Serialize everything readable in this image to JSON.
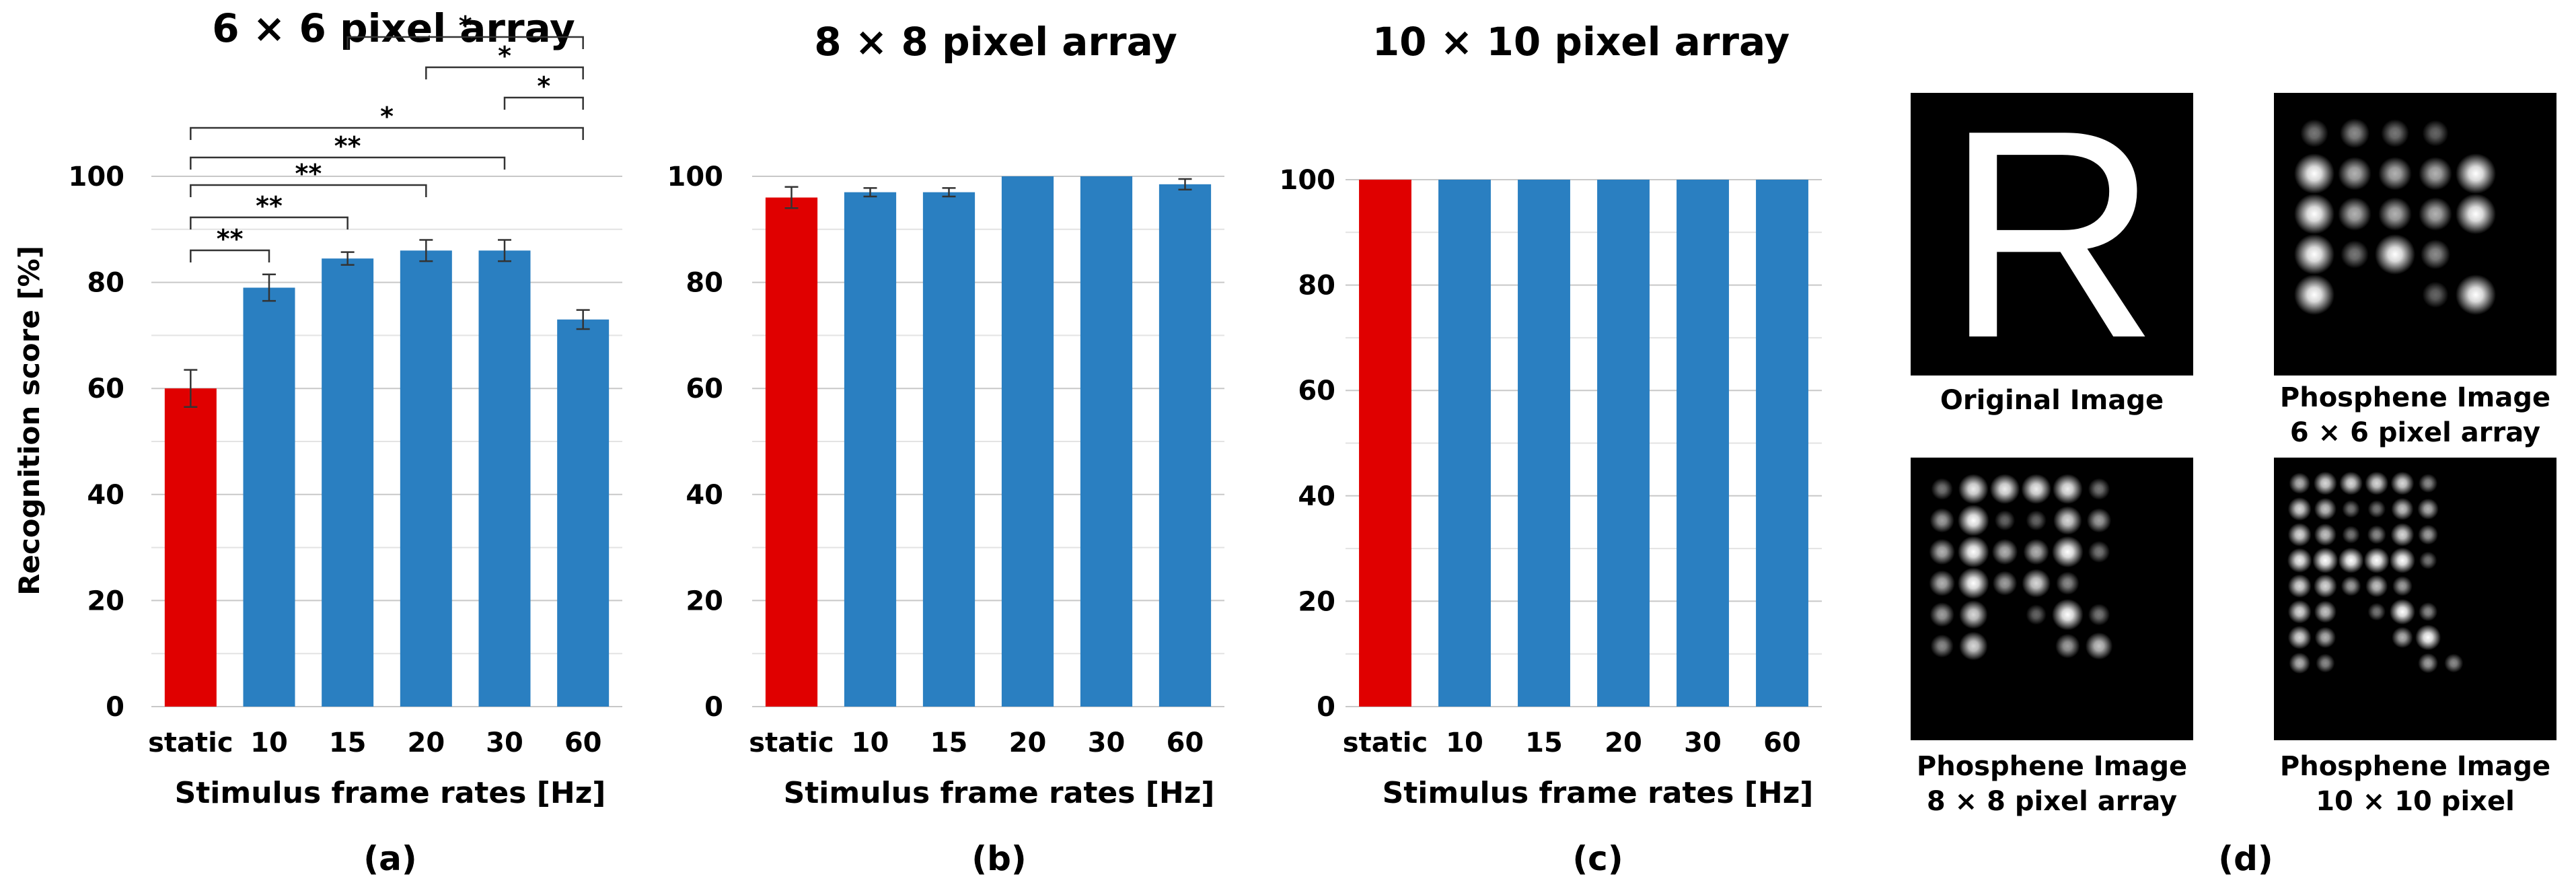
{
  "chart_data": [
    {
      "type": "bar",
      "panel_label": "(a)",
      "title": "6 × 6 pixel array",
      "xlabel": "Stimulus frame rates [Hz]",
      "ylabel": "Recognition score [%]",
      "ylim": [
        0,
        100
      ],
      "yticks": [
        "0",
        "20",
        "40",
        "60",
        "80",
        "100"
      ],
      "grid": true,
      "categories": [
        "static",
        "10",
        "15",
        "20",
        "30",
        "60"
      ],
      "values": [
        60,
        79,
        84.5,
        86,
        86,
        73
      ],
      "errors": [
        3.5,
        2.5,
        1.2,
        2,
        2,
        1.8
      ],
      "colors": [
        "#e00000",
        "#2a7fc1",
        "#2a7fc1",
        "#2a7fc1",
        "#2a7fc1",
        "#2a7fc1"
      ],
      "significance": [
        {
          "from": "static",
          "to": "10",
          "label": "**"
        },
        {
          "from": "static",
          "to": "15",
          "label": "**"
        },
        {
          "from": "static",
          "to": "20",
          "label": "**"
        },
        {
          "from": "static",
          "to": "30",
          "label": "**"
        },
        {
          "from": "static",
          "to": "60",
          "label": "*"
        },
        {
          "from": "30",
          "to": "60",
          "label": "*"
        },
        {
          "from": "20",
          "to": "60",
          "label": "*"
        },
        {
          "from": "15",
          "to": "60",
          "label": "*"
        }
      ]
    },
    {
      "type": "bar",
      "panel_label": "(b)",
      "title": "8 × 8 pixel array",
      "xlabel": "Stimulus frame rates [Hz]",
      "ylim": [
        0,
        100
      ],
      "yticks": [
        "0",
        "20",
        "40",
        "60",
        "80",
        "100"
      ],
      "grid": true,
      "categories": [
        "static",
        "10",
        "15",
        "20",
        "30",
        "60"
      ],
      "values": [
        96,
        97,
        97,
        100,
        100,
        98.5
      ],
      "errors": [
        2,
        0.8,
        0.8,
        0,
        0,
        1
      ],
      "colors": [
        "#e00000",
        "#2a7fc1",
        "#2a7fc1",
        "#2a7fc1",
        "#2a7fc1",
        "#2a7fc1"
      ]
    },
    {
      "type": "bar",
      "panel_label": "(c)",
      "title": "10 × 10 pixel array",
      "xlabel": "Stimulus frame rates [Hz]",
      "ylim": [
        0,
        100
      ],
      "yticks": [
        "0",
        "20",
        "40",
        "60",
        "80",
        "100"
      ],
      "grid": true,
      "categories": [
        "static",
        "10",
        "15",
        "20",
        "30",
        "60"
      ],
      "values": [
        100,
        100,
        100,
        100,
        100,
        100
      ],
      "errors": [
        0,
        0,
        0,
        0,
        0,
        0
      ],
      "colors": [
        "#e00000",
        "#2a7fc1",
        "#2a7fc1",
        "#2a7fc1",
        "#2a7fc1",
        "#2a7fc1"
      ]
    }
  ],
  "panel_d": {
    "label": "(d)",
    "images": [
      {
        "caption": [
          "Original Image"
        ],
        "glyph": "R",
        "kind": "original"
      },
      {
        "caption": [
          "Phosphene Image",
          "6 × 6 pixel array"
        ],
        "kind": "phosphene",
        "grid": 6
      },
      {
        "caption": [
          "Phosphene Image",
          "8 × 8 pixel array"
        ],
        "kind": "phosphene",
        "grid": 8
      },
      {
        "caption": [
          "Phosphene Image",
          "10 × 10 pixel"
        ],
        "kind": "phosphene",
        "grid": 10
      }
    ]
  }
}
